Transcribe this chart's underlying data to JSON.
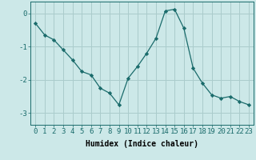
{
  "x": [
    0,
    1,
    2,
    3,
    4,
    5,
    6,
    7,
    8,
    9,
    10,
    11,
    12,
    13,
    14,
    15,
    16,
    17,
    18,
    19,
    20,
    21,
    22,
    23
  ],
  "y": [
    -0.3,
    -0.65,
    -0.8,
    -1.1,
    -1.4,
    -1.75,
    -1.85,
    -2.25,
    -2.4,
    -2.75,
    -1.95,
    -1.6,
    -1.2,
    -0.75,
    0.07,
    0.12,
    -0.45,
    -1.65,
    -2.1,
    -2.45,
    -2.55,
    -2.5,
    -2.65,
    -2.75
  ],
  "line_color": "#1a6b6b",
  "marker": "D",
  "marker_size": 2.2,
  "bg_color": "#cce8e8",
  "grid_color": "#aacccc",
  "xlabel": "Humidex (Indice chaleur)",
  "xlabel_fontsize": 7,
  "tick_fontsize": 6.5,
  "xlim": [
    -0.5,
    23.5
  ],
  "ylim": [
    -3.35,
    0.35
  ],
  "yticks": [
    0,
    -1,
    -2,
    -3
  ],
  "xticks": [
    0,
    1,
    2,
    3,
    4,
    5,
    6,
    7,
    8,
    9,
    10,
    11,
    12,
    13,
    14,
    15,
    16,
    17,
    18,
    19,
    20,
    21,
    22,
    23
  ]
}
